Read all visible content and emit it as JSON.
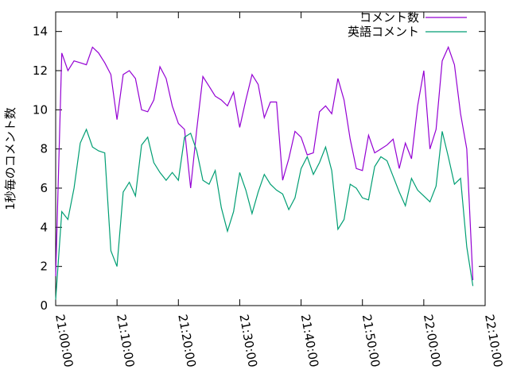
{
  "chart_data": {
    "type": "line",
    "ylabel": "1秒毎のコメント数",
    "x": [
      "21:00:00",
      "21:01:00",
      "21:02:00",
      "21:03:00",
      "21:04:00",
      "21:05:00",
      "21:06:00",
      "21:07:00",
      "21:08:00",
      "21:09:00",
      "21:10:00",
      "21:11:00",
      "21:12:00",
      "21:13:00",
      "21:14:00",
      "21:15:00",
      "21:16:00",
      "21:17:00",
      "21:18:00",
      "21:19:00",
      "21:20:00",
      "21:21:00",
      "21:22:00",
      "21:23:00",
      "21:24:00",
      "21:25:00",
      "21:26:00",
      "21:27:00",
      "21:28:00",
      "21:29:00",
      "21:30:00",
      "21:31:00",
      "21:32:00",
      "21:33:00",
      "21:34:00",
      "21:35:00",
      "21:36:00",
      "21:37:00",
      "21:38:00",
      "21:39:00",
      "21:40:00",
      "21:41:00",
      "21:42:00",
      "21:43:00",
      "21:44:00",
      "21:45:00",
      "21:46:00",
      "21:47:00",
      "21:48:00",
      "21:49:00",
      "21:50:00",
      "21:51:00",
      "21:52:00",
      "21:53:00",
      "21:54:00",
      "21:55:00",
      "21:56:00",
      "21:57:00",
      "21:58:00",
      "21:59:00",
      "22:00:00",
      "22:01:00",
      "22:02:00",
      "22:03:00",
      "22:04:00",
      "22:05:00",
      "22:06:00",
      "22:07:00",
      "22:08:00"
    ],
    "series": [
      {
        "name": "コメント数",
        "color": "#9400d3",
        "values": [
          1.5,
          12.9,
          12.0,
          12.5,
          12.4,
          12.3,
          13.2,
          12.9,
          12.4,
          11.8,
          9.5,
          11.8,
          12.0,
          11.6,
          10.0,
          9.9,
          10.5,
          12.2,
          11.6,
          10.2,
          9.3,
          9.0,
          6.0,
          9.0,
          11.7,
          11.2,
          10.7,
          10.5,
          10.2,
          10.9,
          9.1,
          10.5,
          11.8,
          11.3,
          9.6,
          10.4,
          10.4,
          6.4,
          7.5,
          8.9,
          8.6,
          7.7,
          7.8,
          9.9,
          10.2,
          9.8,
          11.6,
          10.5,
          8.5,
          7.0,
          6.9,
          8.7,
          7.8,
          8.0,
          8.2,
          8.5,
          7.0,
          8.3,
          7.5,
          10.2,
          12.0,
          8.0,
          9.0,
          12.5,
          13.2,
          12.3,
          9.8,
          8.0,
          1.3
        ]
      },
      {
        "name": "英語コメント",
        "color": "#009e73",
        "values": [
          0.3,
          4.8,
          4.4,
          6.0,
          8.3,
          9.0,
          8.1,
          7.9,
          7.8,
          2.8,
          2.0,
          5.8,
          6.3,
          5.6,
          8.2,
          8.6,
          7.3,
          6.8,
          6.4,
          6.8,
          6.4,
          8.6,
          8.8,
          7.9,
          6.4,
          6.2,
          6.9,
          5.0,
          3.8,
          4.8,
          6.8,
          5.9,
          4.7,
          5.8,
          6.7,
          6.2,
          5.9,
          5.7,
          4.9,
          5.5,
          7.0,
          7.6,
          6.7,
          7.3,
          8.1,
          6.9,
          3.9,
          4.4,
          6.2,
          6.0,
          5.5,
          5.4,
          7.1,
          7.6,
          7.4,
          6.6,
          5.8,
          5.1,
          6.5,
          5.9,
          5.6,
          5.3,
          6.1,
          8.9,
          7.6,
          6.2,
          6.5,
          3.0,
          1.0
        ]
      }
    ],
    "xlim": [
      "21:00:00",
      "22:10:00"
    ],
    "xticks": [
      "21:00:00",
      "21:10:00",
      "21:20:00",
      "21:30:00",
      "21:40:00",
      "21:50:00",
      "22:00:00",
      "22:10:00"
    ],
    "ylim": [
      0,
      15
    ],
    "yticks": [
      0,
      2,
      4,
      6,
      8,
      10,
      12,
      14
    ],
    "grid": false,
    "legend": "top-right"
  }
}
